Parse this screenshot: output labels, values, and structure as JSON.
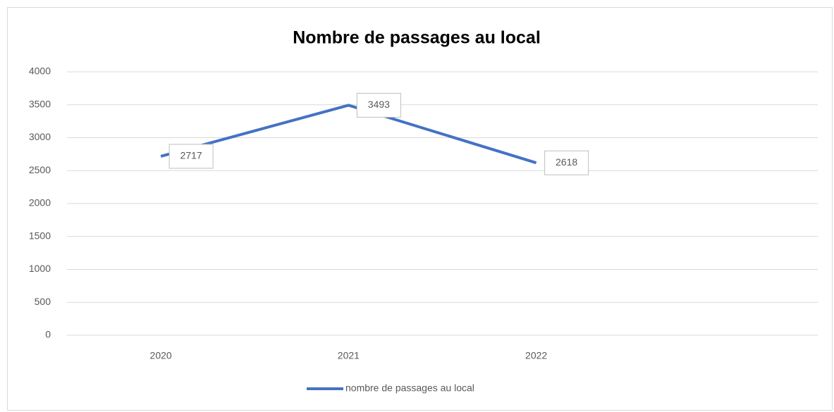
{
  "chart_data": {
    "type": "line",
    "title": "Nombre de passages au local",
    "categories": [
      "2020",
      "2021",
      "2022",
      null
    ],
    "series": [
      {
        "name": "nombre de passages au local",
        "color": "#4472c4",
        "values": [
          2717,
          3493,
          2618,
          null
        ]
      }
    ],
    "ylim": [
      0,
      4000
    ],
    "yticks": [
      0,
      500,
      1000,
      1500,
      2000,
      2500,
      3000,
      3500,
      4000
    ],
    "grid": true,
    "legend": "bottom"
  }
}
